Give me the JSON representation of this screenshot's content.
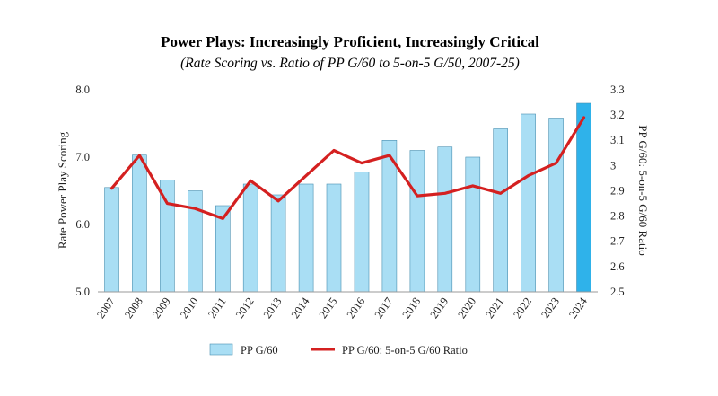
{
  "chart_data": {
    "type": "bar+line",
    "title": "Power Plays: Increasingly Proficient, Increasingly Critical",
    "subtitle": "(Rate Scoring vs. Ratio of PP G/60 to 5-on-5 G/50, 2007-25)",
    "categories": [
      "2007",
      "2008",
      "2009",
      "2010",
      "2011",
      "2012",
      "2013",
      "2014",
      "2015",
      "2016",
      "2017",
      "2018",
      "2019",
      "2020",
      "2021",
      "2022",
      "2023",
      "2024"
    ],
    "series": [
      {
        "name": "PP G/60",
        "type": "bar",
        "axis": "left",
        "color": "#a9def4",
        "highlight_color": "#2fb2ea",
        "values": [
          6.55,
          7.03,
          6.66,
          6.5,
          6.28,
          6.6,
          6.44,
          6.6,
          6.6,
          6.78,
          7.25,
          7.1,
          7.15,
          7.0,
          7.42,
          7.64,
          7.58,
          7.8
        ]
      },
      {
        "name": "PP G/60: 5-on-5 G/60 Ratio",
        "type": "line",
        "axis": "right",
        "color": "#d42020",
        "values": [
          2.91,
          3.04,
          2.85,
          2.83,
          2.79,
          2.94,
          2.86,
          2.96,
          3.06,
          3.01,
          3.04,
          2.88,
          2.89,
          2.92,
          2.89,
          2.96,
          3.01,
          3.19
        ]
      }
    ],
    "ylabel": "Rate Power Play Scoring",
    "ylabel_right": "PP G/60: 5-on-5 G/60 Ratio",
    "ylim": [
      5.0,
      8.0
    ],
    "ylim_right": [
      2.5,
      3.3
    ],
    "yticks": [
      "5.0",
      "6.0",
      "7.0",
      "8.0"
    ],
    "yticks_right": [
      "2.5",
      "2.6",
      "2.7",
      "2.8",
      "2.9",
      "3",
      "3.1",
      "3.2",
      "3.3"
    ],
    "grid": false,
    "legend_position": "bottom"
  }
}
